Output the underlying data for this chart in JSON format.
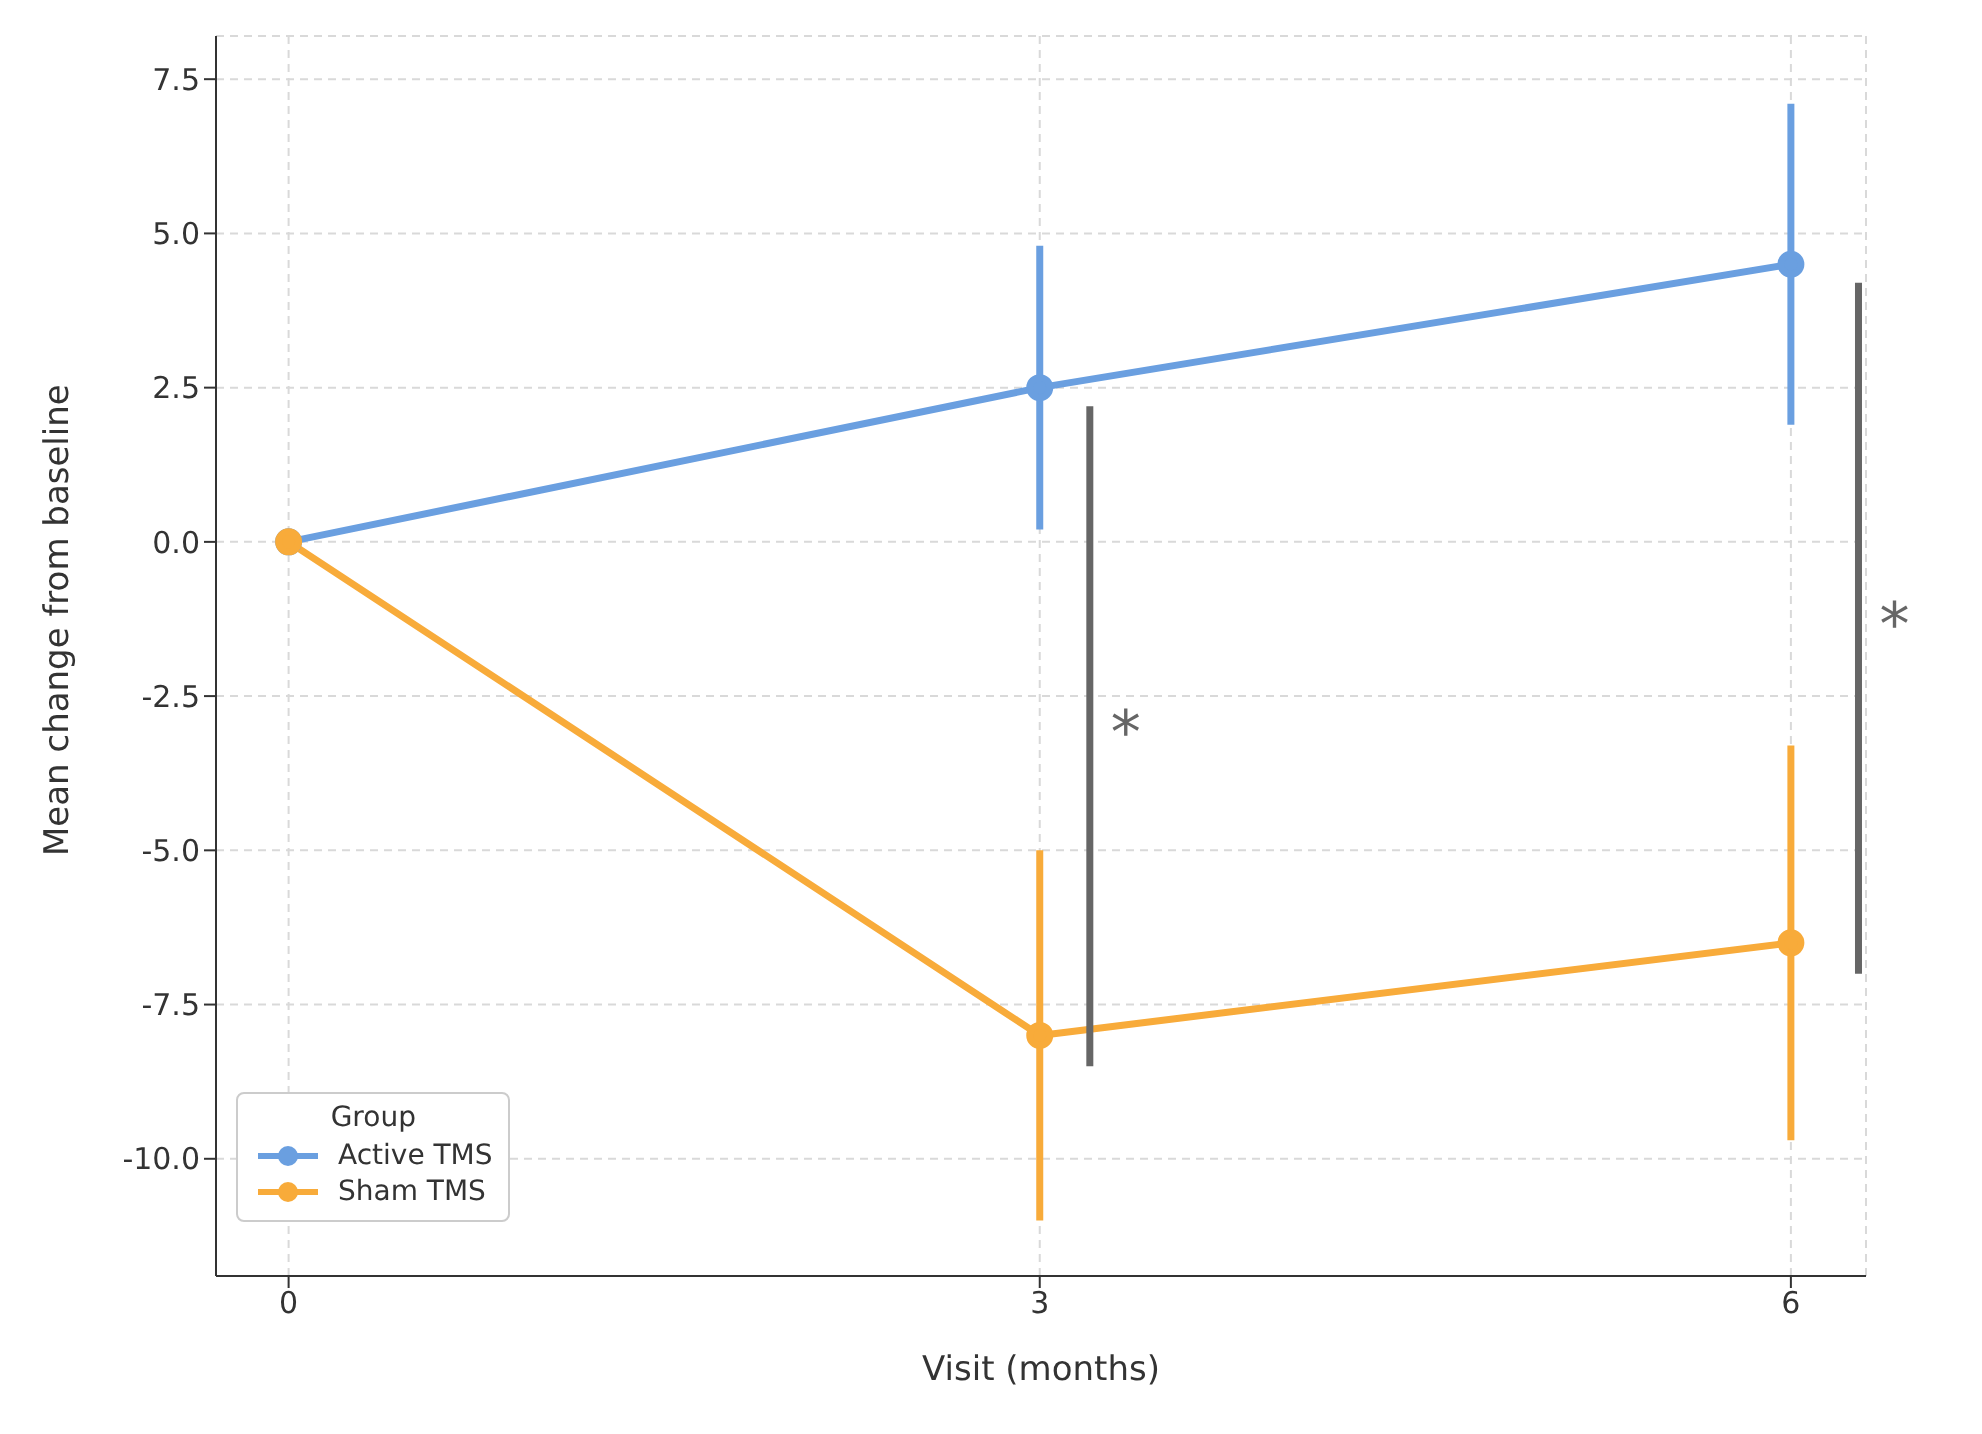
{
  "chart_data": {
    "type": "line",
    "xlabel": "Visit (months)",
    "ylabel": "Mean change from baseline",
    "legend_title": "Group",
    "x": [
      0,
      3,
      6
    ],
    "series": [
      {
        "name": "Active TMS",
        "color": "#6a9fe0",
        "values": [
          0,
          2.5,
          4.5
        ],
        "errors": [
          null,
          2.3,
          2.6
        ]
      },
      {
        "name": "Sham TMS",
        "color": "#f8ab3a",
        "values": [
          0,
          -8.0,
          -6.5
        ],
        "errors": [
          null,
          3.0,
          3.2
        ]
      }
    ],
    "xlim": [
      -0.29,
      6.3
    ],
    "xticks": [
      0,
      3,
      6
    ],
    "ylim": [
      -11.9,
      8.2
    ],
    "yticks": [
      {
        "value": -10,
        "label": "-10.0"
      },
      -7.5,
      {
        "value": -5,
        "label": "-5.0"
      },
      -2.5,
      {
        "value": 0,
        "label": "0.0"
      },
      2.5,
      {
        "value": 5,
        "label": "5.0"
      },
      7.5
    ],
    "annotations": [
      "*",
      "*"
    ],
    "grid": true,
    "legend": "bottom left",
    "marker": "circle",
    "line_style": "solid"
  }
}
